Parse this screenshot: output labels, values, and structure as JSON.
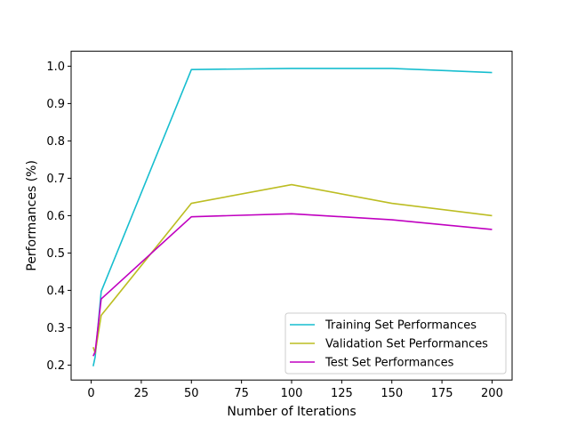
{
  "chart_data": {
    "type": "line",
    "title": "",
    "xlabel": "Number of Iterations",
    "ylabel": "Performances (%)",
    "xlim": [
      -10,
      210
    ],
    "ylim": [
      0.16,
      1.04
    ],
    "xticks": [
      0,
      25,
      50,
      75,
      100,
      125,
      150,
      175,
      200
    ],
    "yticks": [
      0.2,
      0.3,
      0.4,
      0.5,
      0.6,
      0.7,
      0.8,
      0.9,
      1.0
    ],
    "ytick_labels": [
      "0.2",
      "0.3",
      "0.4",
      "0.5",
      "0.6",
      "0.7",
      "0.8",
      "0.9",
      "1.0"
    ],
    "grid": false,
    "legend": "bottom-right",
    "x": [
      1,
      2,
      5,
      50,
      100,
      150,
      200
    ],
    "series": [
      {
        "name": "Training Set Performances",
        "color": "#17becf",
        "values": [
          0.197,
          0.222,
          0.397,
          0.991,
          0.994,
          0.994,
          0.983
        ]
      },
      {
        "name": "Validation Set Performances",
        "color": "#bcbd22",
        "values": [
          0.248,
          0.232,
          0.333,
          0.633,
          0.683,
          0.633,
          0.6
        ]
      },
      {
        "name": "Test Set Performances",
        "color": "#c000c0",
        "values": [
          0.224,
          0.236,
          0.377,
          0.597,
          0.605,
          0.589,
          0.563
        ]
      }
    ]
  }
}
